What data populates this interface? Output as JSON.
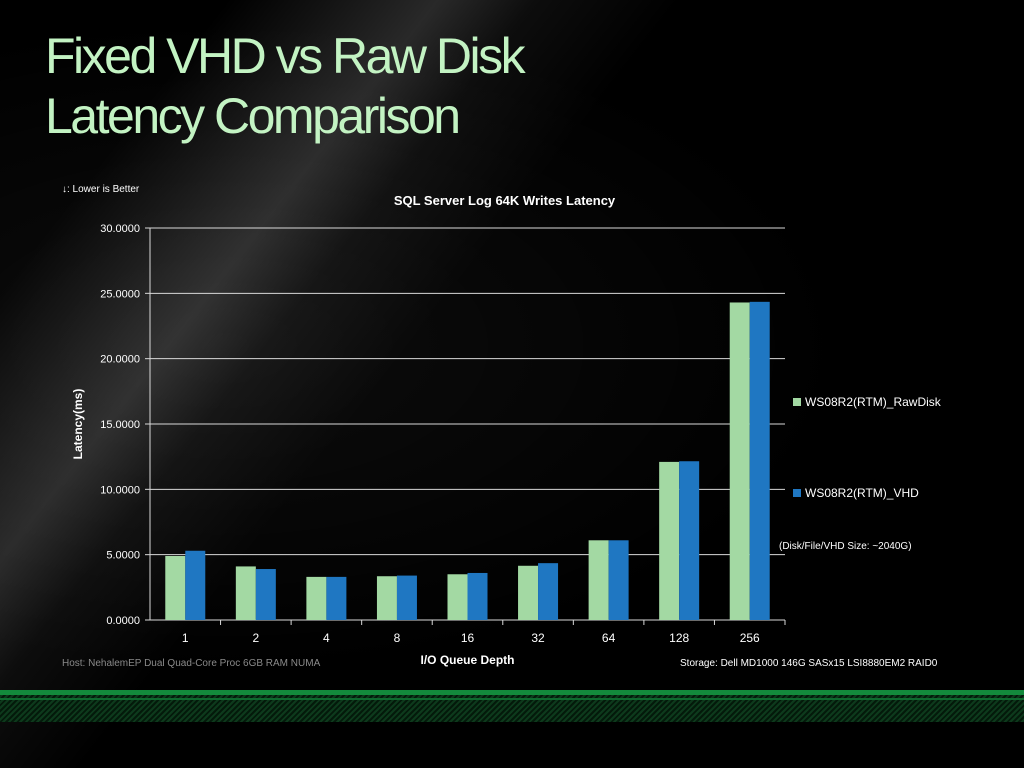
{
  "slide": {
    "title_line1": "Fixed VHD vs Raw Disk",
    "title_line2": "Latency Comparison",
    "lower_note": "↓: Lower is Better",
    "host_note": "Host: NehalemEP Dual Quad-Core Proc 6GB RAM NUMA",
    "storage_note": "Storage: Dell MD1000 146G SASx15 LSI8880EM2 RAID0",
    "disk_size_note": "(Disk/File/VHD Size: ~2040G)"
  },
  "chart_data": {
    "type": "bar",
    "title": "SQL Server Log 64K Writes Latency",
    "xlabel": "I/O Queue Depth",
    "ylabel": "Latency(ms)",
    "ylim": [
      0,
      30
    ],
    "yticks": [
      "0.0000",
      "5.0000",
      "10.0000",
      "15.0000",
      "20.0000",
      "25.0000",
      "30.0000"
    ],
    "grid": true,
    "legend_position": "right",
    "categories": [
      "1",
      "2",
      "4",
      "8",
      "16",
      "32",
      "64",
      "128",
      "256"
    ],
    "series": [
      {
        "name": "WS08R2(RTM)_RawDisk",
        "color": "#a3d9a3",
        "values": [
          4.9,
          4.1,
          3.3,
          3.35,
          3.5,
          4.15,
          6.1,
          12.1,
          24.3
        ]
      },
      {
        "name": "WS08R2(RTM)_VHD",
        "color": "#1f77c2",
        "values": [
          5.3,
          3.9,
          3.3,
          3.4,
          3.6,
          4.35,
          6.1,
          12.15,
          24.35
        ]
      }
    ]
  }
}
